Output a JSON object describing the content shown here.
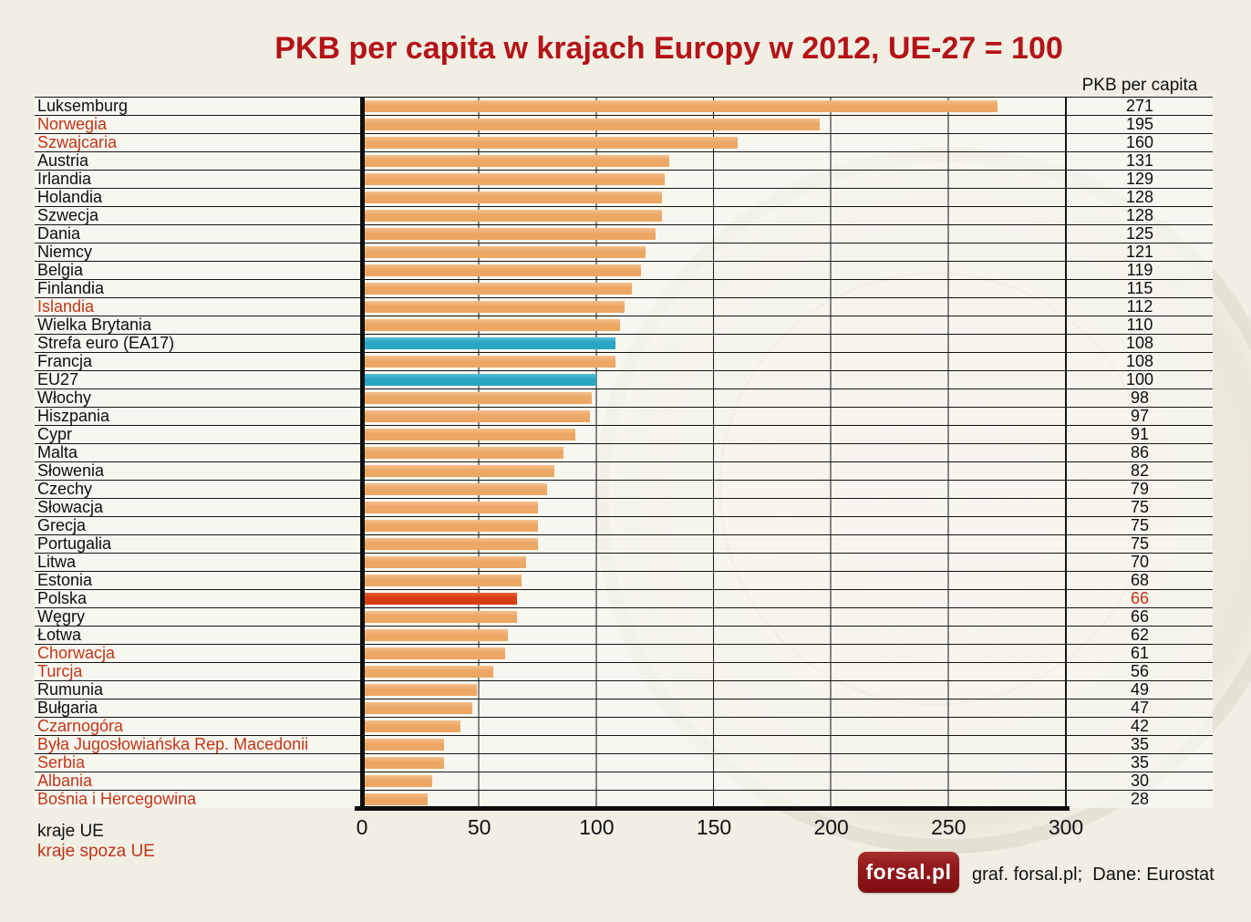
{
  "title": "PKB per capita w krajach Europy w 2012, UE-27 = 100",
  "value_column_header": "PKB per capita",
  "chart_data": {
    "type": "bar",
    "orientation": "horizontal",
    "title": "PKB per capita w krajach Europy w 2012, UE-27 = 100",
    "xlabel": "",
    "ylabel": "",
    "xlim": [
      0,
      300
    ],
    "x_ticks": [
      0,
      50,
      100,
      150,
      200,
      250,
      300
    ],
    "grid": "vertical gridlines every 50 units",
    "legend_position": "bottom-left",
    "rows": [
      {
        "label": "Luksemburg",
        "value": 271,
        "group": "eu",
        "bar": "orange"
      },
      {
        "label": "Norwegia",
        "value": 195,
        "group": "non-eu",
        "bar": "orange"
      },
      {
        "label": "Szwajcaria",
        "value": 160,
        "group": "non-eu",
        "bar": "orange"
      },
      {
        "label": "Austria",
        "value": 131,
        "group": "eu",
        "bar": "orange"
      },
      {
        "label": "Irlandia",
        "value": 129,
        "group": "eu",
        "bar": "orange"
      },
      {
        "label": "Holandia",
        "value": 128,
        "group": "eu",
        "bar": "orange"
      },
      {
        "label": "Szwecja",
        "value": 128,
        "group": "eu",
        "bar": "orange"
      },
      {
        "label": "Dania",
        "value": 125,
        "group": "eu",
        "bar": "orange"
      },
      {
        "label": "Niemcy",
        "value": 121,
        "group": "eu",
        "bar": "orange"
      },
      {
        "label": "Belgia",
        "value": 119,
        "group": "eu",
        "bar": "orange"
      },
      {
        "label": "Finlandia",
        "value": 115,
        "group": "eu",
        "bar": "orange"
      },
      {
        "label": "Islandia",
        "value": 112,
        "group": "non-eu",
        "bar": "orange"
      },
      {
        "label": "Wielka Brytania",
        "value": 110,
        "group": "eu",
        "bar": "orange"
      },
      {
        "label": "Strefa euro (EA17)",
        "value": 108,
        "group": "eu",
        "bar": "blue"
      },
      {
        "label": "Francja",
        "value": 108,
        "group": "eu",
        "bar": "orange"
      },
      {
        "label": "EU27",
        "value": 100,
        "group": "eu",
        "bar": "blue"
      },
      {
        "label": "Włochy",
        "value": 98,
        "group": "eu",
        "bar": "orange"
      },
      {
        "label": "Hiszpania",
        "value": 97,
        "group": "eu",
        "bar": "orange"
      },
      {
        "label": "Cypr",
        "value": 91,
        "group": "eu",
        "bar": "orange"
      },
      {
        "label": "Malta",
        "value": 86,
        "group": "eu",
        "bar": "orange"
      },
      {
        "label": "Słowenia",
        "value": 82,
        "group": "eu",
        "bar": "orange"
      },
      {
        "label": "Czechy",
        "value": 79,
        "group": "eu",
        "bar": "orange"
      },
      {
        "label": "Słowacja",
        "value": 75,
        "group": "eu",
        "bar": "orange"
      },
      {
        "label": "Grecja",
        "value": 75,
        "group": "eu",
        "bar": "orange"
      },
      {
        "label": "Portugalia",
        "value": 75,
        "group": "eu",
        "bar": "orange"
      },
      {
        "label": "Litwa",
        "value": 70,
        "group": "eu",
        "bar": "orange"
      },
      {
        "label": "Estonia",
        "value": 68,
        "group": "eu",
        "bar": "orange"
      },
      {
        "label": "Polska",
        "value": 66,
        "group": "eu",
        "bar": "red",
        "highlight_value": true
      },
      {
        "label": "Węgry",
        "value": 66,
        "group": "eu",
        "bar": "orange"
      },
      {
        "label": "Łotwa",
        "value": 62,
        "group": "eu",
        "bar": "orange"
      },
      {
        "label": "Chorwacja",
        "value": 61,
        "group": "non-eu",
        "bar": "orange"
      },
      {
        "label": "Turcja",
        "value": 56,
        "group": "non-eu",
        "bar": "orange"
      },
      {
        "label": "Rumunia",
        "value": 49,
        "group": "eu",
        "bar": "orange"
      },
      {
        "label": "Bułgaria",
        "value": 47,
        "group": "eu",
        "bar": "orange"
      },
      {
        "label": "Czarnogóra",
        "value": 42,
        "group": "non-eu",
        "bar": "orange"
      },
      {
        "label": "Była Jugosłowiańska Rep. Macedonii",
        "value": 35,
        "group": "non-eu",
        "bar": "orange"
      },
      {
        "label": "Serbia",
        "value": 35,
        "group": "non-eu",
        "bar": "orange"
      },
      {
        "label": "Albania",
        "value": 30,
        "group": "non-eu",
        "bar": "orange"
      },
      {
        "label": "Bośnia i Hercegowina",
        "value": 28,
        "group": "non-eu",
        "bar": "orange"
      }
    ]
  },
  "legend": {
    "eu_label": "kraje UE",
    "non_eu_label": "kraje spoza UE"
  },
  "footer": {
    "logo_text": "forsal.pl",
    "credit": "graf. forsal.pl;  Dane: Eurostat"
  },
  "colors": {
    "background": "#F1EFE4",
    "line": "#151515",
    "title_red": "#B41318",
    "label_red": "#C23418",
    "orange": "#ECA765",
    "orange_hi": "#F4BF8C",
    "blue": "#2AA6C4",
    "blue_hi": "#56BDD6",
    "redbar": "#D83C12",
    "red_hi": "#E4602F",
    "logo_bg": "#941A1D"
  }
}
